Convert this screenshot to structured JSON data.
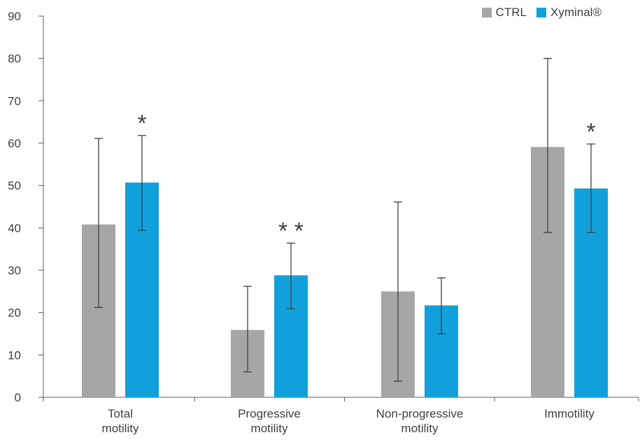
{
  "chart_data": {
    "type": "bar",
    "categories": [
      "Total\nmotility",
      "Progressive\nmotility",
      "Non-progressive\nmotility",
      "Immotility"
    ],
    "series": [
      {
        "name": "CTRL",
        "color": "#a6a6a6",
        "values": [
          40.8,
          15.9,
          25.0,
          59.1
        ],
        "error_low": [
          21.2,
          6.0,
          3.8,
          38.9
        ],
        "error_high": [
          61.1,
          26.2,
          46.1,
          80.0
        ]
      },
      {
        "name": "Xyminal®",
        "color": "#12a0dc",
        "values": [
          50.7,
          28.8,
          21.7,
          49.3
        ],
        "error_low": [
          39.4,
          20.9,
          15.0,
          38.9
        ],
        "error_high": [
          61.8,
          36.4,
          28.2,
          59.8
        ]
      }
    ],
    "significance": [
      {
        "category_index": 0,
        "series_index": 1,
        "label": "*"
      },
      {
        "category_index": 1,
        "series_index": 1,
        "label": "* *"
      },
      {
        "category_index": 3,
        "series_index": 1,
        "label": "*"
      }
    ],
    "title": "",
    "xlabel": "",
    "ylabel": "",
    "ylim": [
      0,
      90
    ],
    "yticks": [
      "0",
      "10",
      "20",
      "30",
      "40",
      "50",
      "60",
      "70",
      "80",
      "90"
    ],
    "grid": false,
    "legend_position": "top-right"
  }
}
